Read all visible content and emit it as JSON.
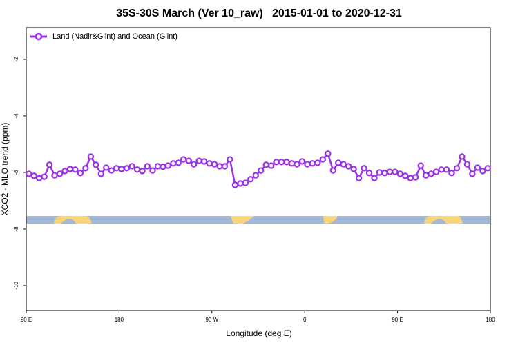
{
  "chart_data": {
    "type": "line",
    "title": "35S-30S March (Ver 10_raw)   2015-01-01 to 2020-12-31",
    "xlabel": "Longitude (deg E)",
    "ylabel": "XCO2 - MLO trend (ppm)",
    "xlim": [
      90,
      540
    ],
    "ylim": [
      -10.88,
      -0.88
    ],
    "xticks": [
      {
        "value": 90,
        "label": "90 E"
      },
      180,
      {
        "value": 270,
        "label": "90 W"
      },
      {
        "value": 360,
        "label": "0"
      },
      {
        "value": 450,
        "label": "90 E"
      },
      {
        "value": 540,
        "label": "180"
      }
    ],
    "yticks": [
      -10,
      -8,
      -6,
      -4,
      -2
    ],
    "legend": "upper left",
    "x": [
      92.5,
      97.5,
      102.5,
      107.5,
      112.5,
      117.5,
      122.5,
      127.5,
      132.5,
      137.5,
      142.5,
      147.5,
      152.5,
      157.5,
      162.5,
      167.5,
      172.5,
      177.5,
      182.5,
      187.5,
      192.5,
      197.5,
      202.5,
      207.5,
      212.5,
      217.5,
      222.5,
      227.5,
      232.5,
      237.5,
      242.5,
      247.5,
      252.5,
      257.5,
      262.5,
      267.5,
      272.5,
      277.5,
      282.5,
      287.5,
      292.5,
      297.5,
      302.5,
      307.5,
      312.5,
      317.5,
      322.5,
      327.5,
      332.5,
      337.5,
      342.5,
      347.5,
      352.5,
      357.5,
      362.5,
      367.5,
      372.5,
      377.5,
      382.5,
      387.5,
      392.5,
      397.5,
      402.5,
      407.5,
      412.5,
      417.5,
      422.5,
      427.5,
      432.5,
      437.5,
      442.5,
      447.5,
      452.5,
      457.5,
      462.5,
      467.5,
      472.5,
      477.5,
      482.5,
      487.5,
      492.5,
      497.5,
      502.5,
      507.5,
      512.5,
      517.5,
      522.5,
      527.5,
      532.5,
      537.5
    ],
    "series": [
      {
        "name": "Land (Nadir&Glint) and Ocean (Glint)",
        "color": "#9b30e6",
        "values": [
          -6.05,
          -6.12,
          -6.2,
          -6.15,
          -5.73,
          -6.1,
          -6.05,
          -5.95,
          -5.88,
          -5.9,
          -6.02,
          -5.85,
          -5.44,
          -5.73,
          -6.05,
          -5.83,
          -5.93,
          -5.85,
          -5.88,
          -5.85,
          -5.78,
          -5.9,
          -5.95,
          -5.78,
          -5.93,
          -5.78,
          -5.8,
          -5.76,
          -5.68,
          -5.66,
          -5.54,
          -5.59,
          -5.71,
          -5.59,
          -5.61,
          -5.68,
          -5.71,
          -5.78,
          -5.78,
          -5.54,
          -6.44,
          -6.39,
          -6.37,
          -6.24,
          -6.1,
          -5.93,
          -5.73,
          -5.76,
          -5.63,
          -5.63,
          -5.63,
          -5.68,
          -5.71,
          -5.61,
          -5.71,
          -5.68,
          -5.66,
          -5.54,
          -5.34,
          -5.93,
          -5.66,
          -5.71,
          -5.78,
          -5.88,
          -6.2,
          -5.85,
          -6.02,
          -6.2,
          -6.0,
          -6.02,
          -5.98,
          -5.98,
          -6.05,
          -6.12,
          -6.2,
          -6.17,
          -5.76,
          -6.1,
          -6.05,
          -5.98,
          -5.9,
          -5.9,
          -6.02,
          -5.85,
          -5.44,
          -5.71,
          -6.05,
          -5.83,
          -5.95,
          -5.85
        ]
      }
    ]
  }
}
